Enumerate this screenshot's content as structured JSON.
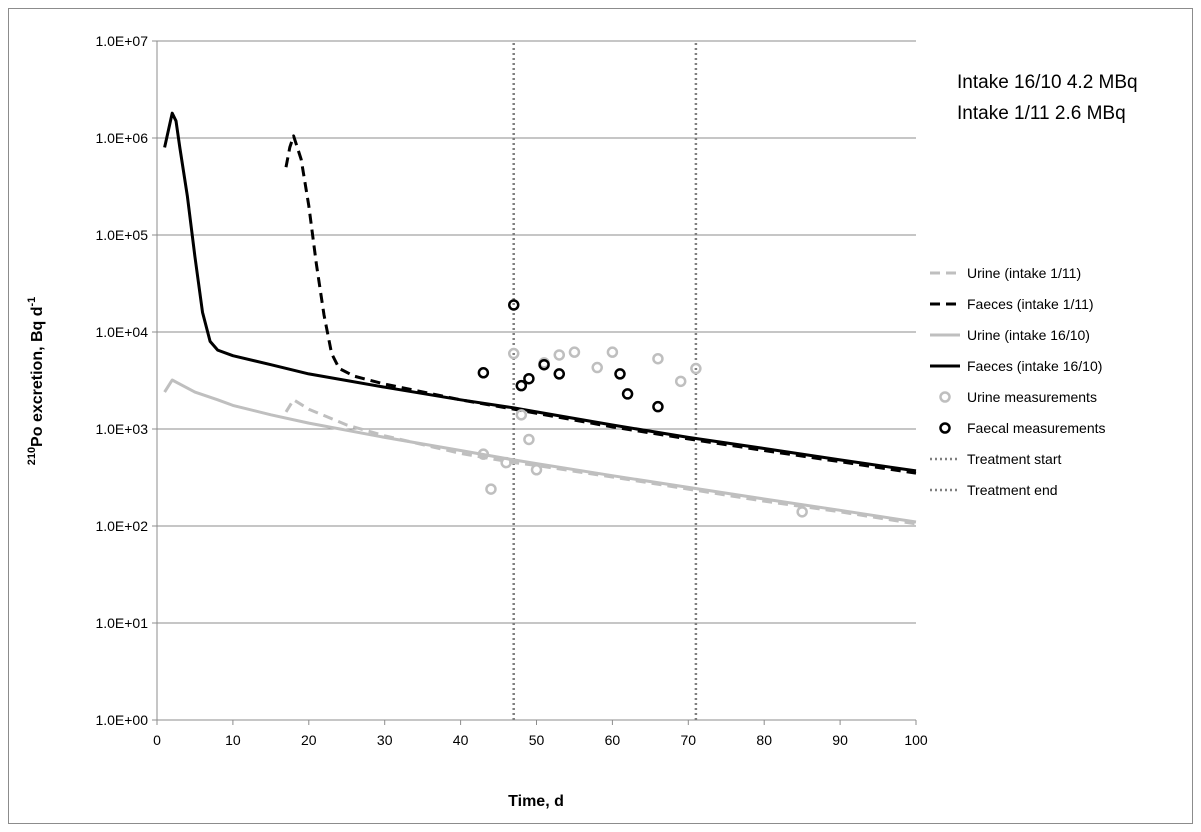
{
  "chart_data": {
    "type": "line",
    "title": "",
    "xlabel": "Time, d",
    "ylabel_prefix": "210",
    "ylabel_main": "Po excretion, Bq d",
    "ylabel_sup": "-1",
    "xlim": [
      0,
      100
    ],
    "ylim": [
      1,
      10000000
    ],
    "yscale": "log",
    "grid": "horizontal",
    "legend_position": "right",
    "x_ticks": [
      "0",
      "10",
      "20",
      "30",
      "40",
      "50",
      "60",
      "70",
      "80",
      "90",
      "100"
    ],
    "y_ticks": [
      "1.0E+00",
      "1.0E+01",
      "1.0E+02",
      "1.0E+03",
      "1.0E+04",
      "1.0E+05",
      "1.0E+06",
      "1.0E+07"
    ],
    "annotations": [
      "Intake 16/10 4.2 MBq",
      "Intake 1/11 2.6 MBq"
    ],
    "series": [
      {
        "name": "Urine (intake 1/11)",
        "style": "dashed",
        "color": "#bfbfbf",
        "x": [
          17,
          18,
          20,
          25,
          30,
          40,
          47,
          50,
          60,
          70,
          80,
          90,
          100
        ],
        "y": [
          1500,
          2000,
          1600,
          1100,
          850,
          560,
          450,
          420,
          320,
          240,
          180,
          140,
          105
        ]
      },
      {
        "name": "Faeces (intake 1/11)",
        "style": "dashed",
        "color": "#000000",
        "x": [
          17,
          17.5,
          18,
          19,
          20,
          21,
          22,
          23,
          24,
          26,
          30,
          40,
          47,
          50,
          60,
          70,
          80,
          90,
          100
        ],
        "y": [
          500000,
          800000,
          1050000,
          600000,
          200000,
          50000,
          15000,
          6000,
          4200,
          3500,
          2900,
          2000,
          1600,
          1450,
          1050,
          790,
          600,
          460,
          350
        ]
      },
      {
        "name": "Urine (intake 16/10)",
        "style": "solid",
        "color": "#bfbfbf",
        "x": [
          1,
          2,
          3,
          5,
          8,
          10,
          15,
          20,
          30,
          40,
          47,
          50,
          60,
          70,
          80,
          90,
          100
        ],
        "y": [
          2400,
          3200,
          2900,
          2400,
          2000,
          1750,
          1400,
          1150,
          820,
          600,
          480,
          440,
          330,
          250,
          190,
          145,
          110
        ]
      },
      {
        "name": "Faeces (intake 16/10)",
        "style": "solid",
        "color": "#000000",
        "x": [
          1,
          2,
          2.5,
          3,
          4,
          5,
          6,
          7,
          8,
          10,
          15,
          20,
          30,
          40,
          47,
          50,
          60,
          70,
          80,
          90,
          100
        ],
        "y": [
          800000,
          1800000,
          1500000,
          800000,
          250000,
          60000,
          16000,
          8000,
          6500,
          5700,
          4600,
          3700,
          2700,
          2000,
          1650,
          1500,
          1100,
          820,
          630,
          480,
          370
        ]
      },
      {
        "name": "Urine measurements",
        "style": "marker",
        "color": "#bfbfbf",
        "x": [
          43,
          44,
          46,
          47,
          48,
          49,
          50,
          51,
          53,
          55,
          58,
          60,
          66,
          69,
          71,
          85
        ],
        "y": [
          550,
          240,
          450,
          6000,
          1400,
          780,
          380,
          4800,
          5800,
          6200,
          4300,
          6200,
          5300,
          3100,
          4200,
          140
        ]
      },
      {
        "name": "Faecal measurements",
        "style": "marker",
        "color": "#000000",
        "x": [
          43,
          47,
          48,
          49,
          51,
          53,
          61,
          62,
          66
        ],
        "y": [
          3800,
          19000,
          2800,
          3300,
          4600,
          3700,
          3700,
          2300,
          1700
        ]
      },
      {
        "name": "Treatment start",
        "style": "dotted",
        "color": "#7f7f7f",
        "x": [
          47,
          47
        ],
        "y": [
          1,
          10000000
        ]
      },
      {
        "name": "Treatment end",
        "style": "dotted",
        "color": "#7f7f7f",
        "x": [
          71,
          71
        ],
        "y": [
          1,
          10000000
        ]
      }
    ]
  }
}
